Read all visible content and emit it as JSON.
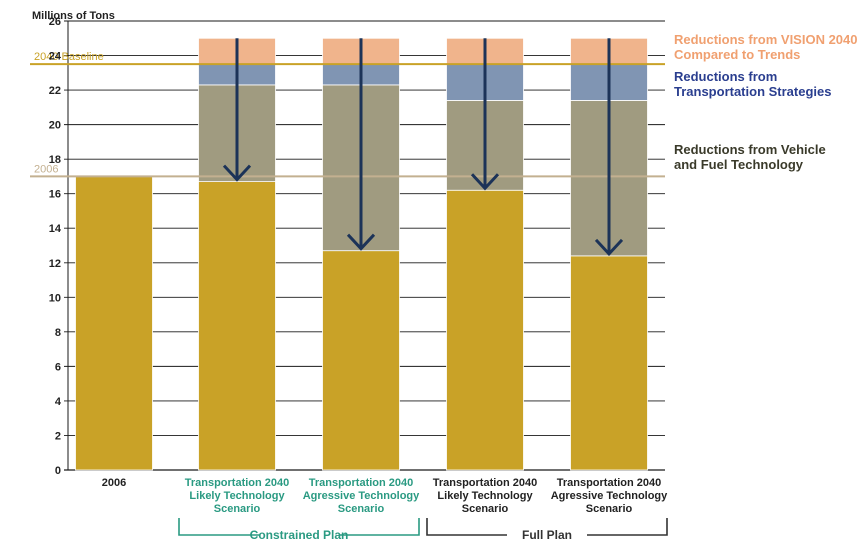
{
  "chart_data": {
    "type": "bar",
    "stacked": true,
    "ylabel": "Millions of Tons",
    "ylim": [
      0,
      26
    ],
    "yticks": [
      0,
      2,
      4,
      6,
      8,
      10,
      12,
      14,
      16,
      18,
      20,
      22,
      24,
      26
    ],
    "grid": true,
    "categories": [
      [
        "2006"
      ],
      [
        "Transportation 2040",
        "Likely Technology",
        "Scenario"
      ],
      [
        "Transportation 2040",
        "Agressive Technology",
        "Scenario"
      ],
      [
        "Transportation 2040",
        "Likely Technology",
        "Scenario"
      ],
      [
        "Transportation 2040",
        "Agressive Technology",
        "Scenario"
      ]
    ],
    "series": [
      {
        "name": "",
        "color": "#c9a227",
        "values": [
          17.0,
          16.7,
          12.7,
          16.2,
          12.4
        ]
      },
      {
        "name": "Reductions from Vehicle and Fuel Technology",
        "color": "#a09b80",
        "values": [
          0,
          5.6,
          9.6,
          5.2,
          9.0
        ]
      },
      {
        "name": "Reductions from Transportation Strategies",
        "color": "#8095b3",
        "values": [
          0,
          1.2,
          1.2,
          2.1,
          2.1
        ]
      },
      {
        "name": "Reductions from VISION 2040 Compared to Trends",
        "color": "#f0b48c",
        "values": [
          0,
          1.5,
          1.5,
          1.5,
          1.5
        ]
      }
    ],
    "reference_lines": [
      {
        "label": "2040 Baseline",
        "value": 23.5,
        "color": "#c9a227"
      },
      {
        "label": "2006",
        "value": 17.0,
        "color": "#c3b090"
      }
    ],
    "arrows": [
      {
        "category_index": 1,
        "from": 25.0,
        "to": 16.7
      },
      {
        "category_index": 2,
        "from": 25.0,
        "to": 12.7
      },
      {
        "category_index": 3,
        "from": 25.0,
        "to": 16.2
      },
      {
        "category_index": 4,
        "from": 25.0,
        "to": 12.4
      }
    ],
    "groups": [
      {
        "label": "Constrained Plan",
        "from_category": 1,
        "to_category": 2,
        "color": "#2a9a82"
      },
      {
        "label": "Full Plan",
        "from_category": 3,
        "to_category": 4,
        "color": "#333333"
      }
    ],
    "legend": [
      {
        "lines": [
          "Reductions from VISION 2040",
          "Compared to Trends"
        ],
        "color": "#f0a070"
      },
      {
        "lines": [
          "Reductions from",
          "Transportation Strategies"
        ],
        "color": "#2a3e8f"
      },
      {
        "lines": [
          "Reductions from Vehicle",
          "and Fuel Technology"
        ],
        "color": "#3a3a2a"
      }
    ],
    "legend_position": "right",
    "category_label_colors": [
      "#222222",
      "#2a9a82",
      "#2a9a82",
      "#222222",
      "#222222"
    ],
    "arrow_color": "#1c3358",
    "grid_color": "#1a1a1a"
  }
}
